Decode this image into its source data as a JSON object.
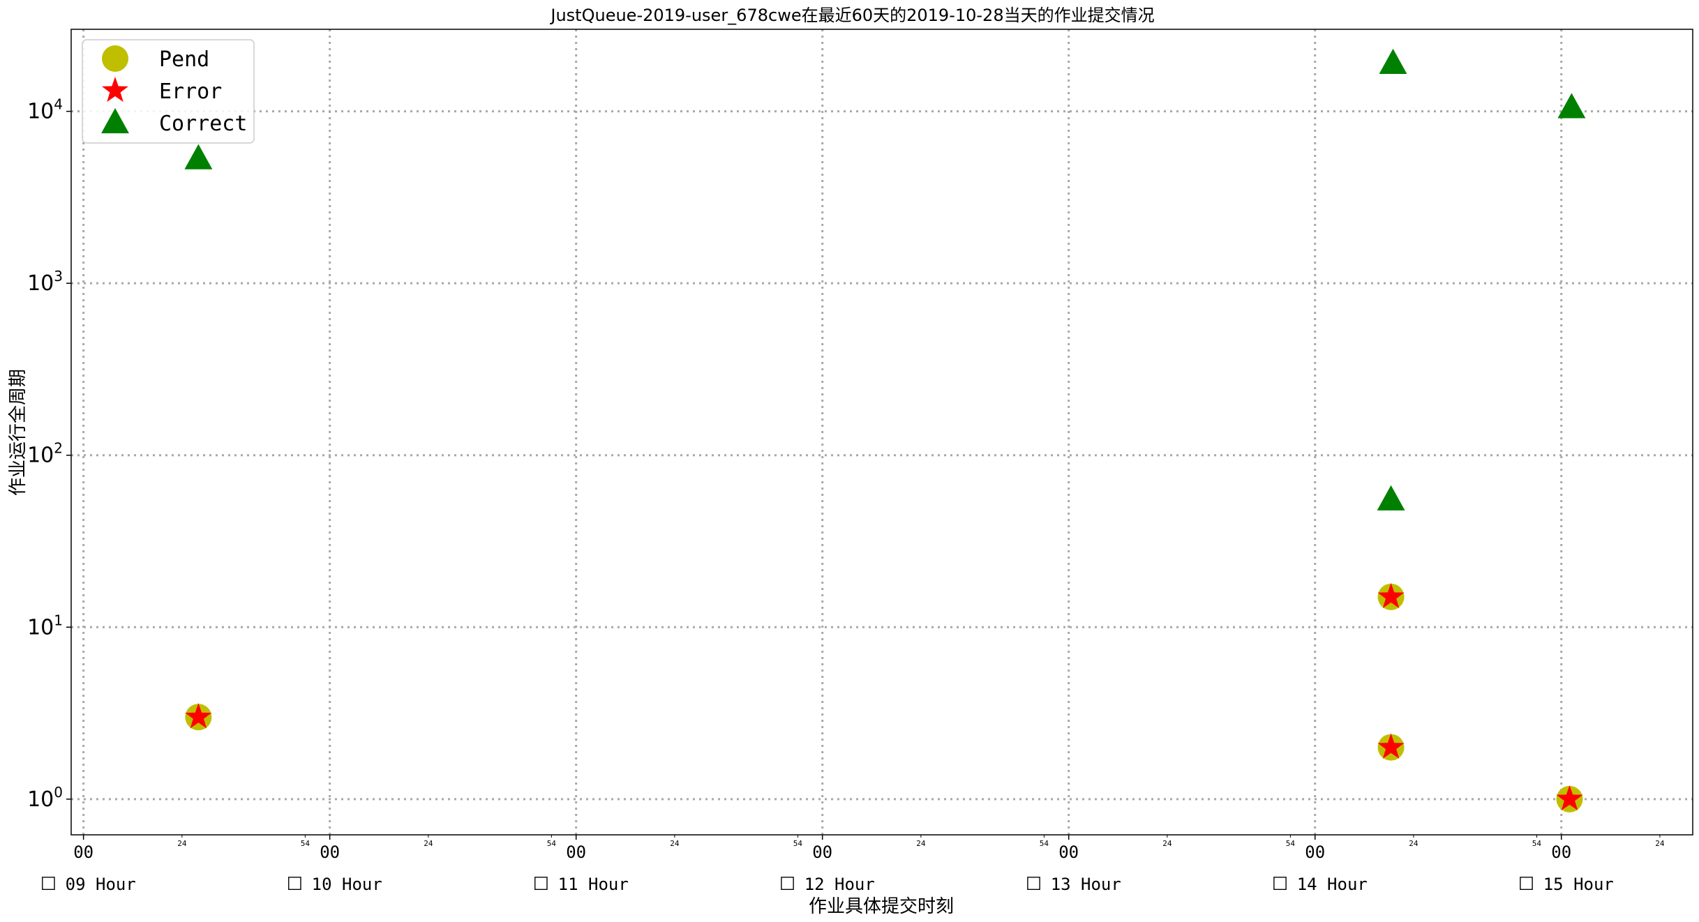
{
  "chart_data": {
    "type": "scatter",
    "title": "JustQueue-2019-user_678cwe在最近60天的2019-10-28当天的作业提交情况",
    "xlabel": "作业具体提交时刻",
    "ylabel": "作业运行全周期",
    "yscale": "log",
    "ylim": [
      0.62,
      30000
    ],
    "y_ticks": [
      {
        "value": 1,
        "base": "10",
        "exp": "0"
      },
      {
        "value": 10,
        "base": "10",
        "exp": "1"
      },
      {
        "value": 100,
        "base": "10",
        "exp": "2"
      },
      {
        "value": 1000,
        "base": "10",
        "exp": "3"
      },
      {
        "value": 10000,
        "base": "10",
        "exp": "4"
      }
    ],
    "x_unit": "minutes since 09:00",
    "xlim": [
      -3,
      392
    ],
    "x_major_ticks": [
      {
        "value": 0,
        "label": "00"
      },
      {
        "value": 60,
        "label": "00"
      },
      {
        "value": 120,
        "label": "00"
      },
      {
        "value": 180,
        "label": "00"
      },
      {
        "value": 240,
        "label": "00"
      },
      {
        "value": 300,
        "label": "00"
      },
      {
        "value": 360,
        "label": "00"
      }
    ],
    "x_minor_ticks": [
      {
        "value": 24,
        "label": "24"
      },
      {
        "value": 54,
        "label": "54"
      },
      {
        "value": 84,
        "label": "24"
      },
      {
        "value": 114,
        "label": "54"
      },
      {
        "value": 144,
        "label": "24"
      },
      {
        "value": 174,
        "label": "54"
      },
      {
        "value": 204,
        "label": "24"
      },
      {
        "value": 234,
        "label": "54"
      },
      {
        "value": 264,
        "label": "24"
      },
      {
        "value": 294,
        "label": "54"
      },
      {
        "value": 324,
        "label": "24"
      },
      {
        "value": 354,
        "label": "54"
      },
      {
        "value": 384,
        "label": "24"
      }
    ],
    "hour_labels": [
      {
        "value": 0,
        "label": "09 Hour"
      },
      {
        "value": 60,
        "label": "10 Hour"
      },
      {
        "value": 120,
        "label": "11 Hour"
      },
      {
        "value": 180,
        "label": "12 Hour"
      },
      {
        "value": 240,
        "label": "13 Hour"
      },
      {
        "value": 300,
        "label": "14 Hour"
      },
      {
        "value": 360,
        "label": "15 Hour"
      }
    ],
    "hour_box_glyph": "☐",
    "grid": true,
    "legend_position": "top-left",
    "series": [
      {
        "name": "Pend",
        "marker": "circle",
        "color": "#bfbf00",
        "points": [
          {
            "x": 28,
            "y": 3
          },
          {
            "x": 318.5,
            "y": 15
          },
          {
            "x": 318.5,
            "y": 2
          },
          {
            "x": 362,
            "y": 1
          }
        ]
      },
      {
        "name": "Error",
        "marker": "star",
        "color": "#ff0000",
        "points": [
          {
            "x": 28,
            "y": 3
          },
          {
            "x": 318.5,
            "y": 15
          },
          {
            "x": 318.5,
            "y": 2
          },
          {
            "x": 362,
            "y": 1
          }
        ]
      },
      {
        "name": "Correct",
        "marker": "triangle",
        "color": "#008000",
        "points": [
          {
            "x": 28,
            "y": 5300
          },
          {
            "x": 319,
            "y": 19000
          },
          {
            "x": 318.5,
            "y": 55
          },
          {
            "x": 362.5,
            "y": 10500
          }
        ]
      }
    ]
  }
}
